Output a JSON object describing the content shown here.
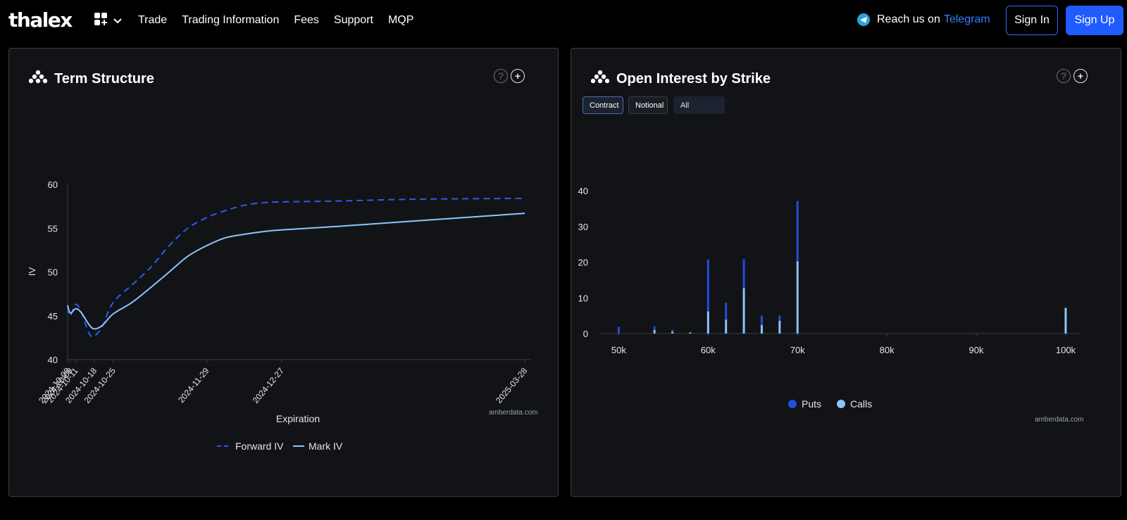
{
  "nav": {
    "logo": "thalex",
    "items": [
      "Trade",
      "Trading Information",
      "Fees",
      "Support",
      "MQP"
    ],
    "reach_prefix": "Reach us on",
    "reach_link": "Telegram",
    "sign_in": "Sign In",
    "sign_up": "Sign Up",
    "apps_icon": "apps-grid-icon",
    "chevron_icon": "chevron-down-icon",
    "telegram_icon": "telegram-icon"
  },
  "colors": {
    "forward": "#2a5cf0",
    "mark": "#8cc4ff",
    "puts": "#1f4ee0",
    "calls": "#8cc4ff",
    "accent": "#1f5bff"
  },
  "term_panel": {
    "title": "Term Structure",
    "credit": "amberdata.com",
    "help_icon": "help-icon",
    "add_icon": "plus-circle-icon",
    "logo_icon": "amberdata-logo-icon"
  },
  "oi_panel": {
    "title": "Open Interest by Strike",
    "credit": "amberdata.com",
    "filters": [
      "Contract",
      "Notional",
      "All"
    ],
    "help_icon": "help-icon",
    "add_icon": "plus-circle-icon",
    "logo_icon": "amberdata-logo-icon"
  },
  "chart_data": [
    {
      "type": "line",
      "title": "Term Structure",
      "xlabel": "Expiration",
      "ylabel": "IV",
      "ylim": [
        40,
        60
      ],
      "yticks": [
        40,
        45,
        50,
        55,
        60
      ],
      "xlim": [
        "2024-10-08",
        "2025-03-28"
      ],
      "xticks": [
        "2024-10-08",
        "2024-10-09",
        "2024-10-11",
        "2024-10-18",
        "2024-10-25",
        "2024-11-29",
        "2024-12-27",
        "2025-03-28"
      ],
      "legend": "bottom",
      "series": [
        {
          "name": "Forward IV",
          "style": "dashed",
          "points": [
            [
              "2024-10-08",
              46.0
            ],
            [
              "2024-10-09",
              45.0
            ],
            [
              "2024-10-11",
              46.3
            ],
            [
              "2024-10-13",
              45.5
            ],
            [
              "2024-10-16",
              43.0
            ],
            [
              "2024-10-18",
              42.7
            ],
            [
              "2024-10-21",
              43.8
            ],
            [
              "2024-10-25",
              46.5
            ],
            [
              "2024-11-01",
              48.5
            ],
            [
              "2024-11-08",
              50.5
            ],
            [
              "2024-11-15",
              53.0
            ],
            [
              "2024-11-22",
              55.0
            ],
            [
              "2024-11-29",
              56.2
            ],
            [
              "2024-12-06",
              57.0
            ],
            [
              "2024-12-13",
              57.6
            ],
            [
              "2024-12-20",
              57.9
            ],
            [
              "2024-12-27",
              58.0
            ],
            [
              "2025-01-17",
              58.1
            ],
            [
              "2025-02-14",
              58.3
            ],
            [
              "2025-03-28",
              58.4
            ]
          ]
        },
        {
          "name": "Mark IV",
          "style": "solid",
          "points": [
            [
              "2024-10-08",
              46.2
            ],
            [
              "2024-10-09",
              45.3
            ],
            [
              "2024-10-11",
              45.8
            ],
            [
              "2024-10-13",
              45.4
            ],
            [
              "2024-10-16",
              44.0
            ],
            [
              "2024-10-18",
              43.5
            ],
            [
              "2024-10-21",
              43.9
            ],
            [
              "2024-10-25",
              45.2
            ],
            [
              "2024-11-01",
              46.5
            ],
            [
              "2024-11-08",
              48.2
            ],
            [
              "2024-11-15",
              50.0
            ],
            [
              "2024-11-22",
              51.8
            ],
            [
              "2024-11-29",
              53.0
            ],
            [
              "2024-12-06",
              53.9
            ],
            [
              "2024-12-13",
              54.3
            ],
            [
              "2024-12-20",
              54.6
            ],
            [
              "2024-12-27",
              54.8
            ],
            [
              "2025-01-17",
              55.2
            ],
            [
              "2025-02-14",
              55.8
            ],
            [
              "2025-03-28",
              56.7
            ]
          ]
        }
      ]
    },
    {
      "type": "bar",
      "title": "Open Interest by Strike",
      "stacked": true,
      "x": [
        50000,
        54000,
        56000,
        58000,
        60000,
        62000,
        64000,
        66000,
        68000,
        70000,
        100000
      ],
      "xticks": [
        "50k",
        "60k",
        "70k",
        "80k",
        "90k",
        "100k"
      ],
      "xtick_values": [
        50000,
        60000,
        70000,
        80000,
        90000,
        100000
      ],
      "xlim": [
        48000,
        101500
      ],
      "ylim": [
        0,
        40
      ],
      "yticks": [
        0,
        10,
        20,
        30,
        40
      ],
      "legend": "bottom",
      "series": [
        {
          "name": "Calls",
          "values": [
            0,
            1.0,
            0.5,
            0.3,
            6.2,
            3.9,
            12.7,
            2.4,
            3.6,
            20.2,
            7.2
          ]
        },
        {
          "name": "Puts",
          "values": [
            1.9,
            1.0,
            0.5,
            0,
            14.5,
            4.7,
            8.1,
            2.6,
            1.4,
            16.9,
            0
          ]
        }
      ]
    }
  ]
}
